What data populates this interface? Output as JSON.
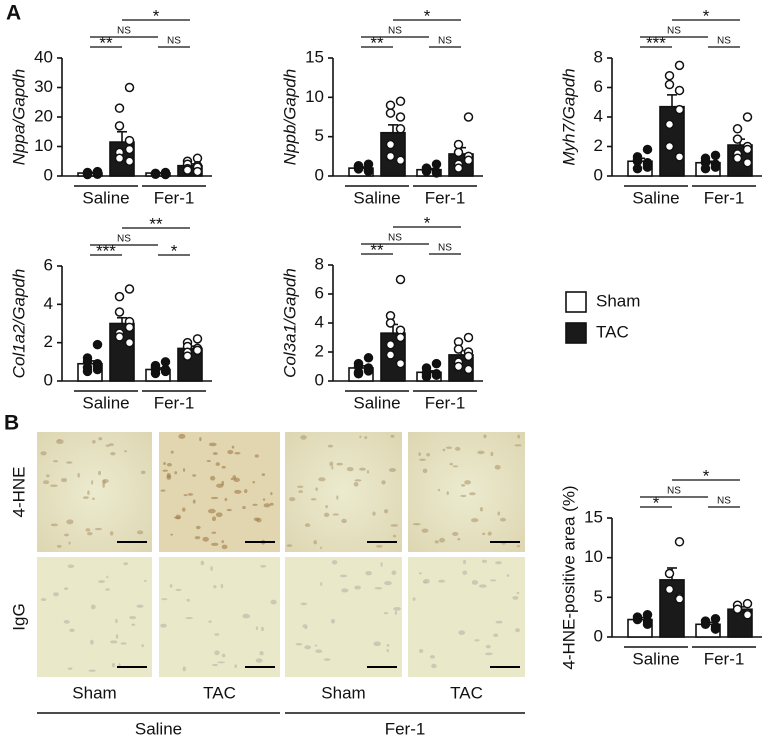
{
  "panels": [
    "A",
    "B"
  ],
  "legend": {
    "series": [
      {
        "name": "Sham",
        "color": "#ffffff"
      },
      {
        "name": "TAC",
        "color": "#1a1a1a"
      }
    ]
  },
  "micrograph": {
    "rows": [
      "4-HNE",
      "IgG"
    ],
    "columns": [
      "Sham",
      "TAC",
      "Sham",
      "TAC"
    ],
    "groups": [
      "Saline",
      "Fer-1"
    ]
  },
  "chart_data": [
    {
      "type": "bar",
      "ylabel": "Nppa/Gapdh",
      "categories": [
        "Saline",
        "Fer-1"
      ],
      "ylim": [
        0,
        40
      ],
      "yticks": [
        0,
        10,
        20,
        30,
        40
      ],
      "series": [
        {
          "values": [
            1,
            1
          ],
          "errors": [
            0.2,
            0.1
          ],
          "points": [
            [
              1.5,
              1.2,
              1,
              0.8,
              0.6,
              0.5,
              0.9,
              1.3
            ],
            [
              1,
              0.8,
              0.6,
              1.2,
              0.5,
              0.9,
              0.7
            ]
          ]
        },
        {
          "values": [
            11.5,
            3.5
          ],
          "errors": [
            3.5,
            0.6
          ],
          "points": [
            [
              30,
              23,
              17,
              12,
              9,
              8,
              6,
              5
            ],
            [
              6,
              5,
              4,
              3.5,
              3,
              2.5,
              2,
              1.5
            ]
          ]
        }
      ],
      "comparisons": [
        {
          "bars": [
            0,
            1
          ],
          "label": "**"
        },
        {
          "bars": [
            2,
            3
          ],
          "label": "NS"
        },
        {
          "bars": [
            0,
            2
          ],
          "label": "NS"
        },
        {
          "bars": [
            1,
            3
          ],
          "label": "*"
        }
      ]
    },
    {
      "type": "bar",
      "ylabel": "Nppb/Gapdh",
      "categories": [
        "Saline",
        "Fer-1"
      ],
      "ylim": [
        0,
        15
      ],
      "yticks": [
        0,
        5,
        10,
        15
      ],
      "series": [
        {
          "values": [
            1,
            0.8
          ],
          "errors": [
            0.15,
            0.15
          ],
          "points": [
            [
              1.5,
              1.2,
              1,
              0.8,
              0.6,
              1.3,
              0.9,
              0.7
            ],
            [
              1.5,
              1,
              0.8,
              0.5,
              0.4,
              0.6,
              0.7
            ]
          ]
        },
        {
          "values": [
            5.5,
            2.8
          ],
          "errors": [
            1,
            0.8
          ],
          "points": [
            [
              9.5,
              9,
              8,
              7.5,
              6,
              4,
              2.5,
              2
            ],
            [
              7.5,
              4,
              3,
              2.5,
              2,
              1.5,
              1
            ]
          ]
        }
      ],
      "comparisons": [
        {
          "bars": [
            0,
            1
          ],
          "label": "**"
        },
        {
          "bars": [
            2,
            3
          ],
          "label": "NS"
        },
        {
          "bars": [
            0,
            2
          ],
          "label": "NS"
        },
        {
          "bars": [
            1,
            3
          ],
          "label": "*"
        }
      ]
    },
    {
      "type": "bar",
      "ylabel": "Myh7/Gapdh",
      "categories": [
        "Saline",
        "Fer-1"
      ],
      "ylim": [
        0,
        8
      ],
      "yticks": [
        0,
        2,
        4,
        6,
        8
      ],
      "series": [
        {
          "values": [
            1,
            0.9
          ],
          "errors": [
            0.2,
            0.1
          ],
          "points": [
            [
              1.8,
              1.3,
              1,
              0.8,
              0.6,
              0.5,
              1.1,
              0.9
            ],
            [
              1.4,
              1.2,
              1,
              0.8,
              0.6,
              0.5,
              0.9
            ]
          ]
        },
        {
          "values": [
            4.7,
            2.1
          ],
          "errors": [
            0.8,
            0.4
          ],
          "points": [
            [
              7.5,
              6.8,
              6.2,
              5.8,
              4.5,
              3.5,
              2,
              1.3
            ],
            [
              4,
              3.2,
              2.5,
              2,
              1.8,
              1.5,
              1.2,
              0.9
            ]
          ]
        }
      ],
      "comparisons": [
        {
          "bars": [
            0,
            1
          ],
          "label": "***"
        },
        {
          "bars": [
            2,
            3
          ],
          "label": "NS"
        },
        {
          "bars": [
            0,
            2
          ],
          "label": "NS"
        },
        {
          "bars": [
            1,
            3
          ],
          "label": "*"
        }
      ]
    },
    {
      "type": "bar",
      "ylabel": "Col1a2/Gapdh",
      "categories": [
        "Saline",
        "Fer-1"
      ],
      "ylim": [
        0,
        6
      ],
      "yticks": [
        0,
        2,
        4,
        6
      ],
      "series": [
        {
          "values": [
            0.9,
            0.6
          ],
          "errors": [
            0.15,
            0.08
          ],
          "points": [
            [
              1.9,
              1.2,
              1,
              0.8,
              0.6,
              0.5,
              0.7,
              0.9
            ],
            [
              1,
              0.8,
              0.7,
              0.6,
              0.5,
              0.4,
              0.6
            ]
          ]
        },
        {
          "values": [
            3,
            1.7
          ],
          "errors": [
            0.3,
            0.12
          ],
          "points": [
            [
              4.8,
              4.4,
              3.6,
              3.1,
              2.8,
              2.5,
              2.3,
              2
            ],
            [
              2.2,
              2,
              1.8,
              1.7,
              1.6,
              1.5,
              1.3
            ]
          ]
        }
      ],
      "comparisons": [
        {
          "bars": [
            0,
            1
          ],
          "label": "***"
        },
        {
          "bars": [
            2,
            3
          ],
          "label": "*"
        },
        {
          "bars": [
            0,
            2
          ],
          "label": "NS"
        },
        {
          "bars": [
            1,
            3
          ],
          "label": "**"
        }
      ]
    },
    {
      "type": "bar",
      "ylabel": "Col3a1/Gapdh",
      "categories": [
        "Saline",
        "Fer-1"
      ],
      "ylim": [
        0,
        8
      ],
      "yticks": [
        0,
        2,
        4,
        6,
        8
      ],
      "series": [
        {
          "values": [
            0.9,
            0.6
          ],
          "errors": [
            0.15,
            0.1
          ],
          "points": [
            [
              1.6,
              1.2,
              1,
              0.9,
              0.7,
              0.6,
              0.5,
              0.8
            ],
            [
              1.2,
              0.9,
              0.6,
              0.5,
              0.4,
              0.3,
              0.5
            ]
          ]
        },
        {
          "values": [
            3.3,
            1.8
          ],
          "errors": [
            0.6,
            0.3
          ],
          "points": [
            [
              7,
              4.5,
              4,
              3.5,
              3,
              2.5,
              1.8,
              1.2
            ],
            [
              3,
              2.7,
              2.2,
              2,
              1.7,
              1.3,
              1,
              0.8
            ]
          ]
        }
      ],
      "comparisons": [
        {
          "bars": [
            0,
            1
          ],
          "label": "**"
        },
        {
          "bars": [
            2,
            3
          ],
          "label": "NS"
        },
        {
          "bars": [
            0,
            2
          ],
          "label": "NS"
        },
        {
          "bars": [
            1,
            3
          ],
          "label": "*"
        }
      ]
    },
    {
      "type": "bar",
      "ylabel": "4-HNE-positive area (%)",
      "categories": [
        "Saline",
        "Fer-1"
      ],
      "ylim": [
        0,
        15
      ],
      "yticks": [
        0,
        5,
        10,
        15
      ],
      "series": [
        {
          "values": [
            2.2,
            1.6
          ],
          "errors": [
            0.25,
            0.25
          ],
          "points": [
            [
              2.8,
              2.5,
              2.2,
              2,
              1.6
            ],
            [
              2.3,
              2,
              1.6,
              1.3,
              1
            ]
          ]
        },
        {
          "values": [
            7.2,
            3.5
          ],
          "errors": [
            1.5,
            0.3
          ],
          "points": [
            [
              12,
              8,
              6,
              5,
              4.8
            ],
            [
              4.2,
              4,
              3.5,
              3,
              2.8
            ]
          ]
        }
      ],
      "comparisons": [
        {
          "bars": [
            0,
            1
          ],
          "label": "*"
        },
        {
          "bars": [
            2,
            3
          ],
          "label": "NS"
        },
        {
          "bars": [
            0,
            2
          ],
          "label": "NS"
        },
        {
          "bars": [
            1,
            3
          ],
          "label": "*"
        }
      ]
    }
  ]
}
